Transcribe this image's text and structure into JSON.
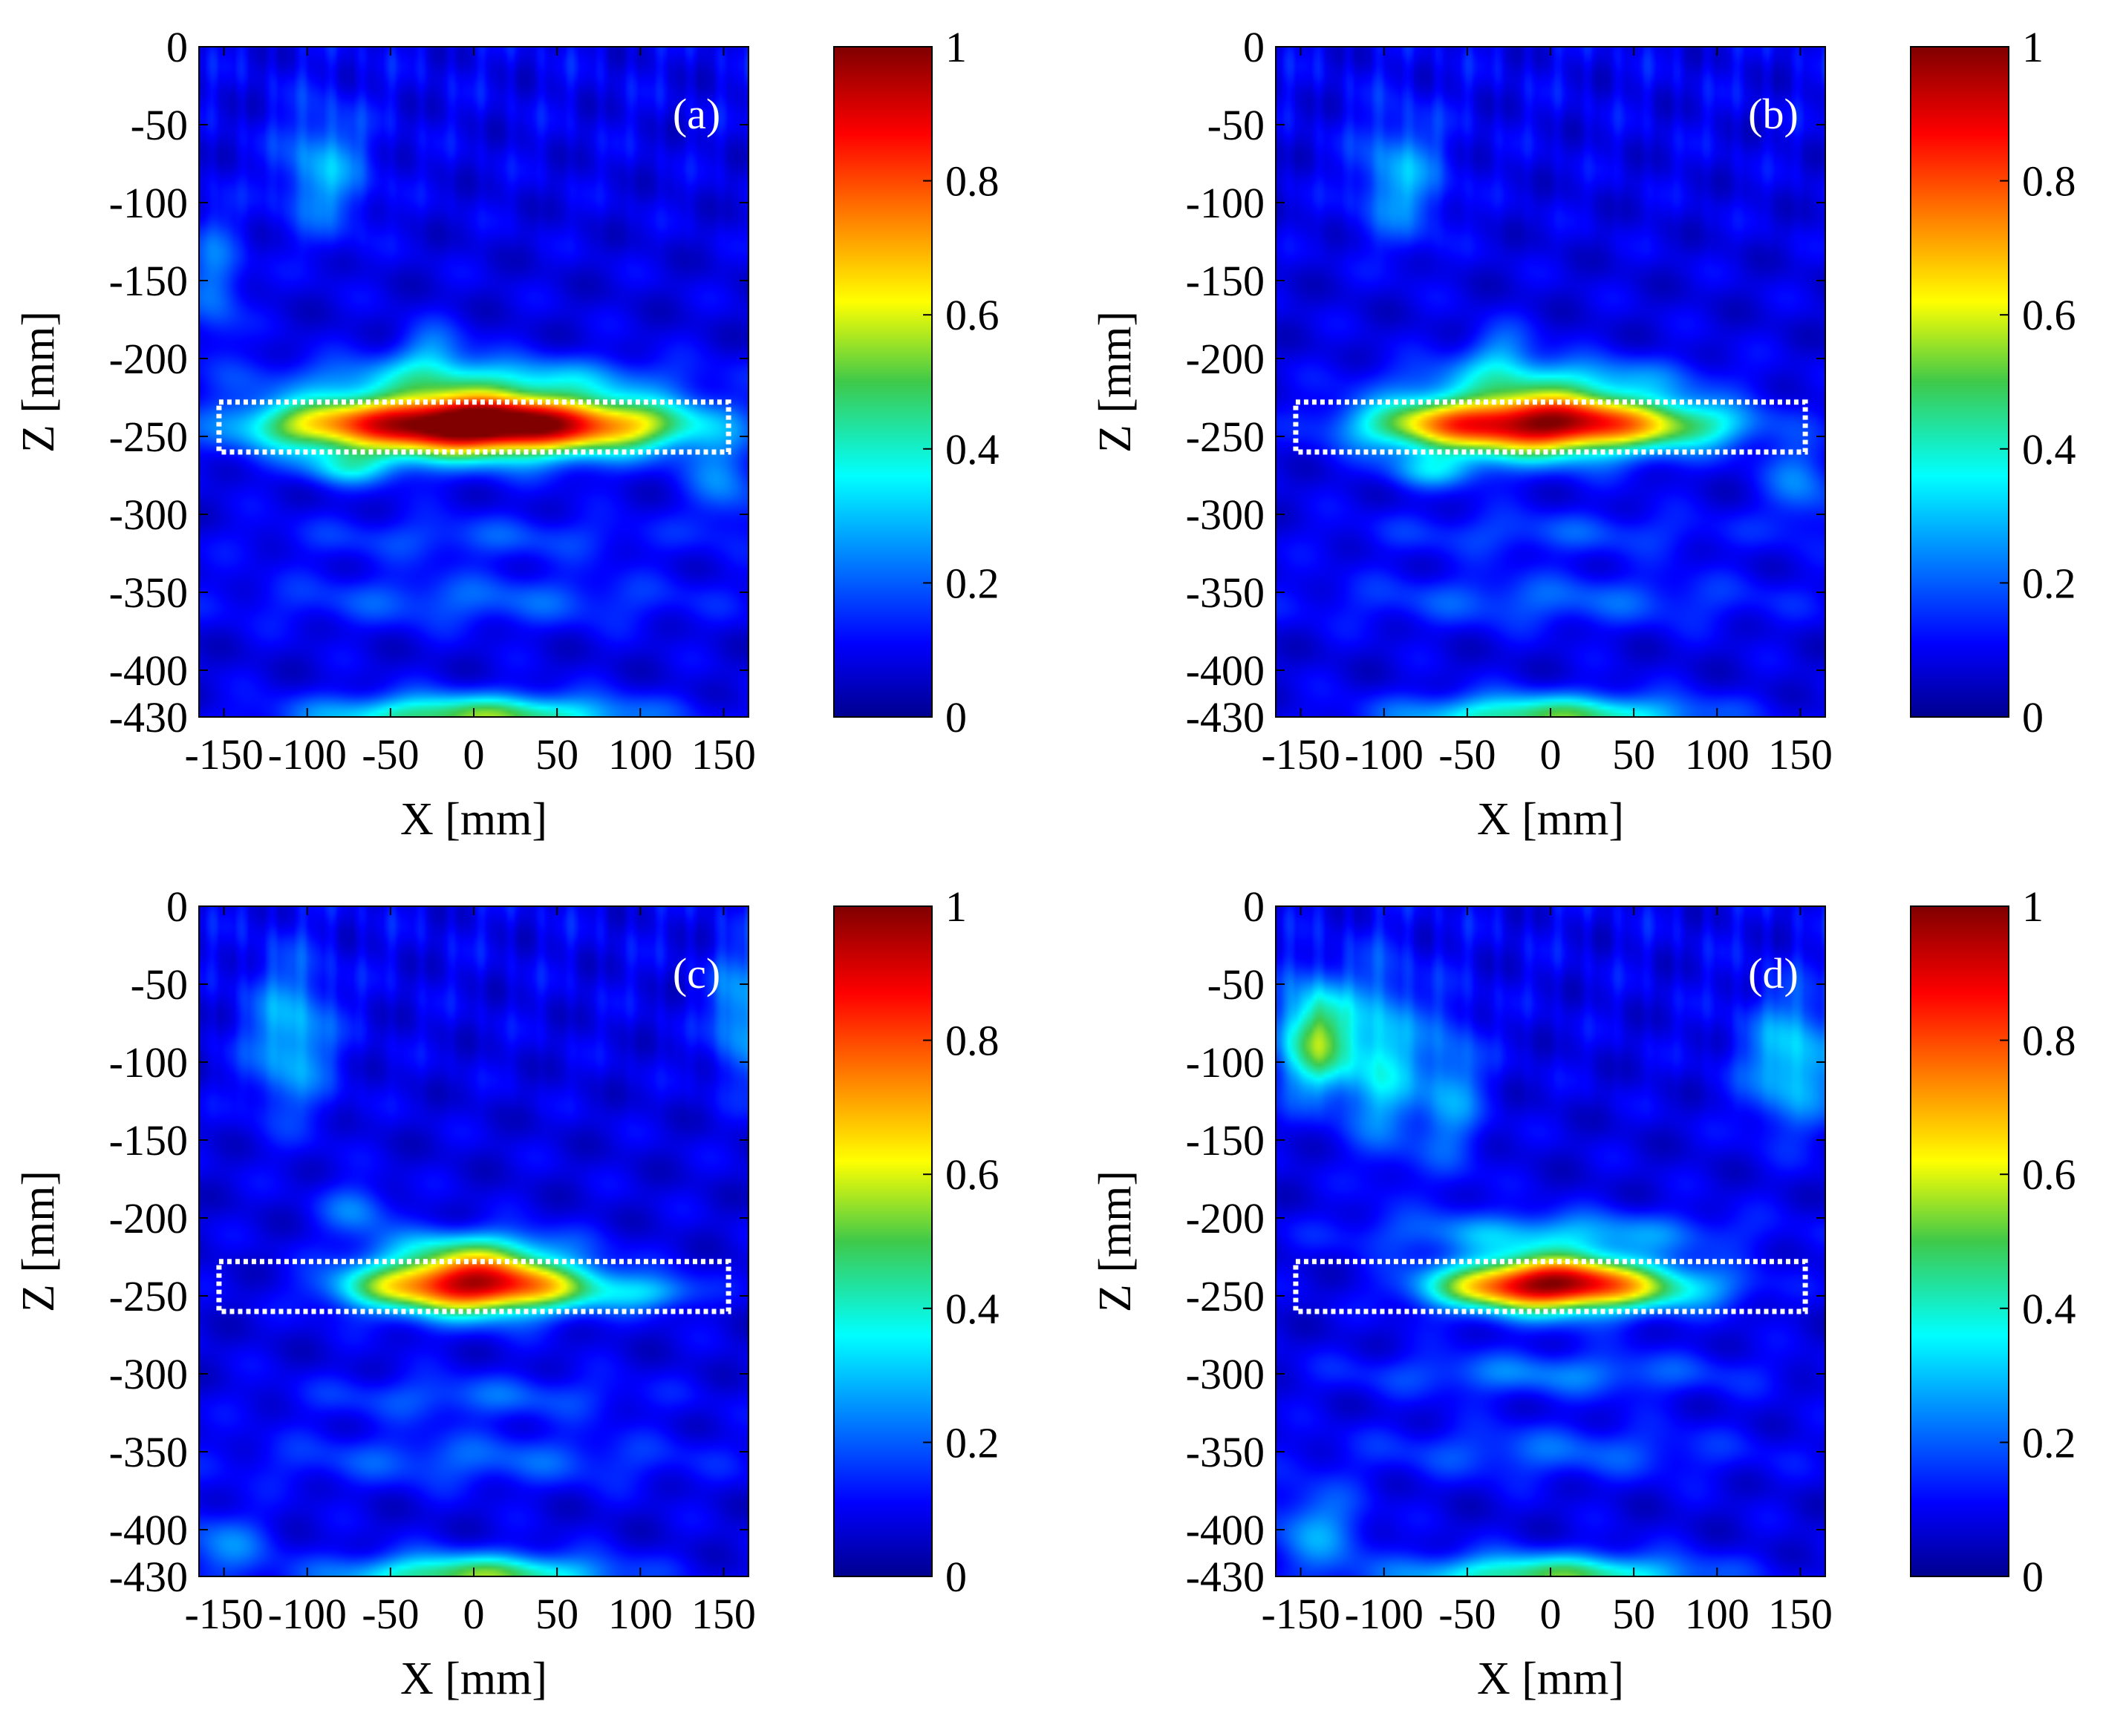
{
  "figure": {
    "panels_count": 4,
    "background_color": "#ffffff",
    "roi_box_color": "#ffffff"
  },
  "colormap": {
    "name": "jet",
    "stops": [
      {
        "v": 0.0,
        "color": "#00008f"
      },
      {
        "v": 0.11,
        "color": "#0000ff"
      },
      {
        "v": 0.36,
        "color": "#00ffff"
      },
      {
        "v": 0.5,
        "color": "#3fc94a"
      },
      {
        "v": 0.62,
        "color": "#ffff00"
      },
      {
        "v": 0.87,
        "color": "#ff0000"
      },
      {
        "v": 1.0,
        "color": "#800000"
      }
    ]
  },
  "chart_data": [
    {
      "type": "heatmap",
      "panel_label": "(a)",
      "xlabel": "X [mm]",
      "ylabel": "Z [mm]",
      "xlim": [
        -165,
        165
      ],
      "ylim": [
        -430,
        0
      ],
      "xticks": [
        -150,
        -100,
        -50,
        0,
        50,
        100,
        150
      ],
      "xtick_labels": [
        "-150",
        "-100",
        "-50",
        "0",
        "50",
        "100",
        "150"
      ],
      "yticks": [
        0,
        -50,
        -100,
        -150,
        -200,
        -250,
        -300,
        -350,
        -400,
        -430
      ],
      "ytick_labels": [
        "0",
        "-50",
        "-100",
        "-150",
        "-200",
        "-250",
        "-300",
        "-350",
        "-400",
        "-430"
      ],
      "colorbar": {
        "range": [
          0,
          1
        ],
        "ticks": [
          0,
          0.2,
          0.4,
          0.6,
          0.8,
          1
        ],
        "tick_labels": [
          "0",
          "0.2",
          "0.4",
          "0.6",
          "0.8",
          "1"
        ]
      },
      "roi_box": {
        "x": [
          -153,
          153
        ],
        "z": [
          -260,
          -228
        ]
      },
      "features": [
        {
          "x": 0,
          "z": -243,
          "sx": 75,
          "sz": 15,
          "amp": 0.78
        },
        {
          "x": -20,
          "z": -240,
          "sx": 45,
          "sz": 12,
          "amp": 0.2
        },
        {
          "x": 30,
          "z": -241,
          "sx": 40,
          "sz": 12,
          "amp": 0.18
        },
        {
          "x": -100,
          "z": -243,
          "sx": 30,
          "sz": 10,
          "amp": 0.2
        },
        {
          "x": 100,
          "z": -243,
          "sx": 30,
          "sz": 10,
          "amp": 0.2
        },
        {
          "x": 0,
          "z": -212,
          "sx": 80,
          "sz": 10,
          "amp": 0.2
        },
        {
          "x": -75,
          "z": -270,
          "sx": 20,
          "sz": 8,
          "amp": 0.2
        },
        {
          "x": -90,
          "z": -80,
          "sx": 18,
          "sz": 28,
          "amp": 0.2
        },
        {
          "x": -25,
          "z": -195,
          "sx": 15,
          "sz": 12,
          "amp": 0.16
        },
        {
          "x": 0,
          "z": -430,
          "sx": 65,
          "sz": 10,
          "amp": 0.45
        },
        {
          "x": 0,
          "z": -355,
          "sx": 95,
          "sz": 12,
          "amp": 0.12
        },
        {
          "x": 0,
          "z": -315,
          "sx": 85,
          "sz": 10,
          "amp": 0.1
        },
        {
          "x": 150,
          "z": -280,
          "sx": 15,
          "sz": 20,
          "amp": 0.15
        },
        {
          "x": -155,
          "z": -150,
          "sx": 12,
          "sz": 30,
          "amp": 0.15
        }
      ]
    },
    {
      "type": "heatmap",
      "panel_label": "(b)",
      "xlabel": "X [mm]",
      "ylabel": "Z [mm]",
      "xlim": [
        -165,
        165
      ],
      "ylim": [
        -430,
        0
      ],
      "xticks": [
        -150,
        -100,
        -50,
        0,
        50,
        100,
        150
      ],
      "xtick_labels": [
        "-150",
        "-100",
        "-50",
        "0",
        "50",
        "100",
        "150"
      ],
      "yticks": [
        0,
        -50,
        -100,
        -150,
        -200,
        -250,
        -300,
        -350,
        -400,
        -430
      ],
      "ytick_labels": [
        "0",
        "-50",
        "-100",
        "-150",
        "-200",
        "-250",
        "-300",
        "-350",
        "-400",
        "-430"
      ],
      "colorbar": {
        "range": [
          0,
          1
        ],
        "ticks": [
          0,
          0.2,
          0.4,
          0.6,
          0.8,
          1
        ],
        "tick_labels": [
          "0",
          "0.2",
          "0.4",
          "0.6",
          "0.8",
          "1"
        ]
      },
      "roi_box": {
        "x": [
          -153,
          153
        ],
        "z": [
          -260,
          -228
        ]
      },
      "features": [
        {
          "x": -10,
          "z": -242,
          "sx": 55,
          "sz": 15,
          "amp": 0.8
        },
        {
          "x": 20,
          "z": -240,
          "sx": 35,
          "sz": 11,
          "amp": 0.15
        },
        {
          "x": -80,
          "z": -243,
          "sx": 30,
          "sz": 10,
          "amp": 0.22
        },
        {
          "x": 85,
          "z": -243,
          "sx": 30,
          "sz": 10,
          "amp": 0.22
        },
        {
          "x": 0,
          "z": -212,
          "sx": 60,
          "sz": 10,
          "amp": 0.18
        },
        {
          "x": -70,
          "z": -272,
          "sx": 20,
          "sz": 8,
          "amp": 0.18
        },
        {
          "x": -90,
          "z": -85,
          "sx": 18,
          "sz": 28,
          "amp": 0.2
        },
        {
          "x": -30,
          "z": -195,
          "sx": 15,
          "sz": 12,
          "amp": 0.15
        },
        {
          "x": 0,
          "z": -430,
          "sx": 60,
          "sz": 10,
          "amp": 0.42
        },
        {
          "x": 0,
          "z": -355,
          "sx": 95,
          "sz": 12,
          "amp": 0.12
        },
        {
          "x": 0,
          "z": -312,
          "sx": 80,
          "sz": 10,
          "amp": 0.1
        },
        {
          "x": 150,
          "z": -280,
          "sx": 15,
          "sz": 20,
          "amp": 0.15
        }
      ]
    },
    {
      "type": "heatmap",
      "panel_label": "(c)",
      "xlabel": "X [mm]",
      "ylabel": "Z [mm]",
      "xlim": [
        -165,
        165
      ],
      "ylim": [
        -430,
        0
      ],
      "xticks": [
        -150,
        -100,
        -50,
        0,
        50,
        100,
        150
      ],
      "xtick_labels": [
        "-150",
        "-100",
        "-50",
        "0",
        "50",
        "100",
        "150"
      ],
      "yticks": [
        0,
        -50,
        -100,
        -150,
        -200,
        -250,
        -300,
        -350,
        -400,
        -430
      ],
      "ytick_labels": [
        "0",
        "-50",
        "-100",
        "-150",
        "-200",
        "-250",
        "-300",
        "-350",
        "-400",
        "-430"
      ],
      "colorbar": {
        "range": [
          0,
          1
        ],
        "ticks": [
          0,
          0.2,
          0.4,
          0.6,
          0.8,
          1
        ],
        "tick_labels": [
          "0",
          "0.2",
          "0.4",
          "0.6",
          "0.8",
          "1"
        ]
      },
      "roi_box": {
        "x": [
          -153,
          153
        ],
        "z": [
          -260,
          -228
        ]
      },
      "features": [
        {
          "x": 0,
          "z": -242,
          "sx": 38,
          "sz": 14,
          "amp": 0.85
        },
        {
          "x": -60,
          "z": -245,
          "sx": 25,
          "sz": 10,
          "amp": 0.2
        },
        {
          "x": 60,
          "z": -245,
          "sx": 28,
          "sz": 10,
          "amp": 0.2
        },
        {
          "x": 110,
          "z": -248,
          "sx": 20,
          "sz": 8,
          "amp": 0.18
        },
        {
          "x": 0,
          "z": -218,
          "sx": 40,
          "sz": 9,
          "amp": 0.18
        },
        {
          "x": -110,
          "z": -85,
          "sx": 18,
          "sz": 35,
          "amp": 0.22
        },
        {
          "x": -70,
          "z": -195,
          "sx": 15,
          "sz": 12,
          "amp": 0.15
        },
        {
          "x": 160,
          "z": -70,
          "sx": 12,
          "sz": 30,
          "amp": 0.2
        },
        {
          "x": 0,
          "z": -430,
          "sx": 55,
          "sz": 10,
          "amp": 0.45
        },
        {
          "x": 0,
          "z": -355,
          "sx": 95,
          "sz": 12,
          "amp": 0.12
        },
        {
          "x": 0,
          "z": -315,
          "sx": 70,
          "sz": 10,
          "amp": 0.12
        },
        {
          "x": -150,
          "z": -410,
          "sx": 20,
          "sz": 15,
          "amp": 0.15
        }
      ]
    },
    {
      "type": "heatmap",
      "panel_label": "(d)",
      "xlabel": "X [mm]",
      "ylabel": "Z [mm]",
      "xlim": [
        -165,
        165
      ],
      "ylim": [
        -430,
        0
      ],
      "xticks": [
        -150,
        -100,
        -50,
        0,
        50,
        100,
        150
      ],
      "xtick_labels": [
        "-150",
        "-100",
        "-50",
        "0",
        "50",
        "100",
        "150"
      ],
      "yticks": [
        0,
        -50,
        -100,
        -150,
        -200,
        -250,
        -300,
        -350,
        -400,
        -430
      ],
      "ytick_labels": [
        "0",
        "-50",
        "-100",
        "-150",
        "-200",
        "-250",
        "-300",
        "-350",
        "-400",
        "-430"
      ],
      "colorbar": {
        "range": [
          0,
          1
        ],
        "ticks": [
          0,
          0.2,
          0.4,
          0.6,
          0.8,
          1
        ],
        "tick_labels": [
          "0",
          "0.2",
          "0.4",
          "0.6",
          "0.8",
          "1"
        ]
      },
      "roi_box": {
        "x": [
          -153,
          153
        ],
        "z": [
          -260,
          -228
        ]
      },
      "features": [
        {
          "x": 5,
          "z": -242,
          "sx": 38,
          "sz": 13,
          "amp": 0.82
        },
        {
          "x": -45,
          "z": -245,
          "sx": 30,
          "sz": 10,
          "amp": 0.25
        },
        {
          "x": 70,
          "z": -245,
          "sx": 35,
          "sz": 10,
          "amp": 0.22
        },
        {
          "x": 0,
          "z": -210,
          "sx": 75,
          "sz": 10,
          "amp": 0.2
        },
        {
          "x": -140,
          "z": -85,
          "sx": 16,
          "sz": 25,
          "amp": 0.45
        },
        {
          "x": -100,
          "z": -100,
          "sx": 15,
          "sz": 40,
          "amp": 0.25
        },
        {
          "x": -60,
          "z": -120,
          "sx": 14,
          "sz": 35,
          "amp": 0.18
        },
        {
          "x": 145,
          "z": -100,
          "sx": 20,
          "sz": 30,
          "amp": 0.25
        },
        {
          "x": 0,
          "z": -430,
          "sx": 60,
          "sz": 10,
          "amp": 0.42
        },
        {
          "x": 0,
          "z": -300,
          "sx": 80,
          "sz": 10,
          "amp": 0.15
        },
        {
          "x": 0,
          "z": -350,
          "sx": 80,
          "sz": 12,
          "amp": 0.12
        },
        {
          "x": -140,
          "z": -400,
          "sx": 20,
          "sz": 20,
          "amp": 0.18
        }
      ]
    }
  ]
}
